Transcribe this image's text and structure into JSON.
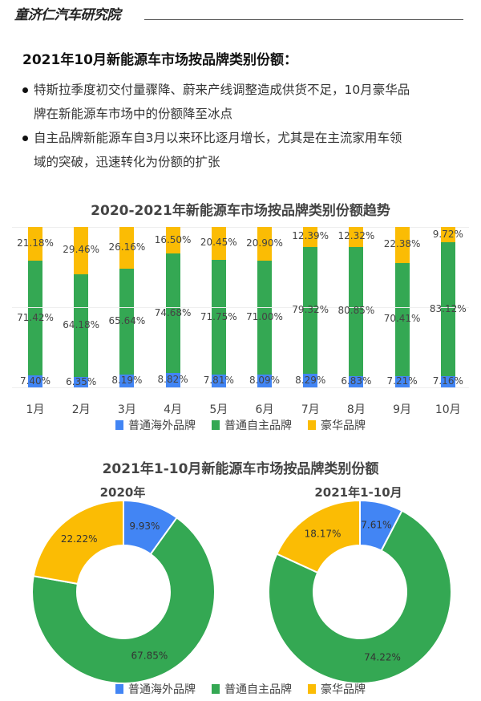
{
  "header": {
    "brand": "童济仁汽车研究院"
  },
  "section_title": "2021年10月新能源车市场按品牌类别份额：",
  "bullets": [
    {
      "line1": "特斯拉季度初交付量骤降、蔚来产线调整造成供货不足，10月豪华品",
      "line2": "牌在新能源车市场中的份额降至冰点"
    },
    {
      "line1": "自主品牌新能源车自3月以来环比逐月增长，尤其是在主流家用车领",
      "line2": "域的突破，迅速转化为份额的扩张"
    }
  ],
  "colors": {
    "overseas": "#4285F4",
    "domestic": "#34A853",
    "luxury": "#FBBC04"
  },
  "legend": [
    "普通海外品牌",
    "普通自主品牌",
    "豪华品牌"
  ],
  "chart_data": [
    {
      "type": "bar",
      "stacked": true,
      "normalized": true,
      "title": "2020-2021年新能源车市场按品牌类别份额趋势",
      "categories": [
        "1月",
        "2月",
        "3月",
        "4月",
        "5月",
        "6月",
        "7月",
        "8月",
        "9月",
        "10月"
      ],
      "series": [
        {
          "name": "普通海外品牌",
          "values": [
            7.4,
            6.35,
            8.19,
            8.82,
            7.81,
            8.09,
            8.29,
            6.83,
            7.21,
            7.16
          ],
          "labels": [
            "7.40%",
            "6.35%",
            "8.19%",
            "8.82%",
            "7.81%",
            "8.09%",
            "8.29%",
            "6.83%",
            "7.21%",
            "7.16%"
          ]
        },
        {
          "name": "普通自主品牌",
          "values": [
            71.42,
            64.18,
            65.64,
            74.68,
            71.75,
            71.0,
            79.32,
            80.85,
            70.41,
            83.12
          ],
          "labels": [
            "71.42%",
            "64.18%",
            "65.64%",
            "74.68%",
            "71.75%",
            "71.00%",
            "79.32%",
            "80.85%",
            "70.41%",
            "83.12%"
          ]
        },
        {
          "name": "豪华品牌",
          "values": [
            21.18,
            29.46,
            26.16,
            16.5,
            20.45,
            20.9,
            12.39,
            12.32,
            22.38,
            9.72
          ],
          "labels": [
            "21.18%",
            "29.46%",
            "26.16%",
            "16.50%",
            "20.45%",
            "20.90%",
            "12.39%",
            "12.32%",
            "22.38%",
            "9.72%"
          ]
        }
      ],
      "ylim": [
        0,
        100
      ],
      "legend_position": "bottom"
    },
    {
      "type": "pie",
      "donut": true,
      "title": "2021年1-10月新能源车市场按品牌类别份额",
      "subtitle": "2020年",
      "categories": [
        "普通海外品牌",
        "普通自主品牌",
        "豪华品牌"
      ],
      "values": [
        9.93,
        67.85,
        22.22
      ],
      "labels": [
        "9.93%",
        "67.85%",
        "22.22%"
      ]
    },
    {
      "type": "pie",
      "donut": true,
      "title": "2021年1-10月新能源车市场按品牌类别份额",
      "subtitle": "2021年1-10月",
      "categories": [
        "普通海外品牌",
        "普通自主品牌",
        "豪华品牌"
      ],
      "values": [
        7.61,
        74.22,
        18.17
      ],
      "labels": [
        "7.61%",
        "74.22%",
        "18.17%"
      ],
      "legend_position": "bottom"
    }
  ]
}
